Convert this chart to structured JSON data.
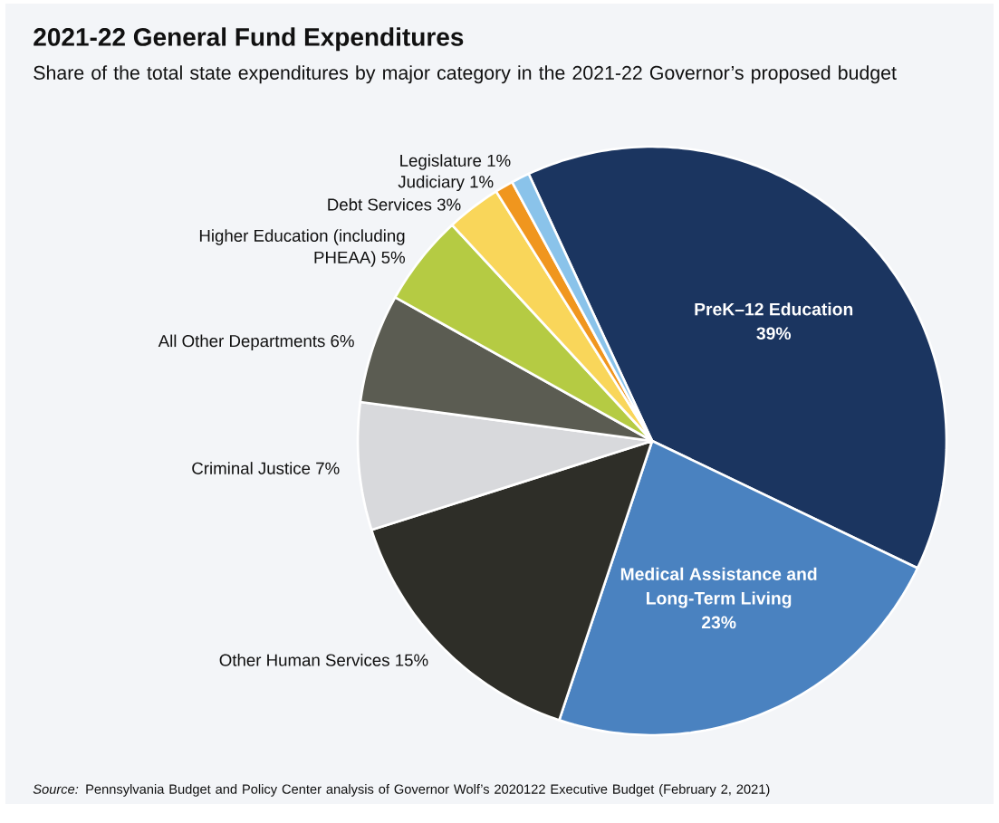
{
  "chart_data": {
    "type": "pie",
    "title": "2021-22 General Fund Expenditures",
    "subtitle": "Share of the total state expenditures by major category in the 2021-22 Governor’s proposed budget",
    "categories": [
      "PreK–12 Education",
      "Medical Assistance and Long-Term Living",
      "Other Human Services",
      "Criminal Justice",
      "All Other Departments",
      "Higher Education (including PHEAA)",
      "Debt Services",
      "Judiciary",
      "Legislature"
    ],
    "values": [
      39,
      23,
      15,
      7,
      6,
      5,
      3,
      1,
      1
    ],
    "value_labels": [
      "39%",
      "23%",
      "15%",
      "7%",
      "6%",
      "5%",
      "3%",
      "1%",
      "1%"
    ],
    "colors": [
      "#1b3560",
      "#4a82c0",
      "#2e2e28",
      "#d8d9dc",
      "#5b5c52",
      "#b5cb43",
      "#f9d65a",
      "#f0961e",
      "#8ac3ea"
    ],
    "annotations": [
      "*Source:* Pennsylvania Budget and Policy Center analysis of Governor Wolf’s 2020122 Executive Budget (February 2, 2021)"
    ]
  }
}
